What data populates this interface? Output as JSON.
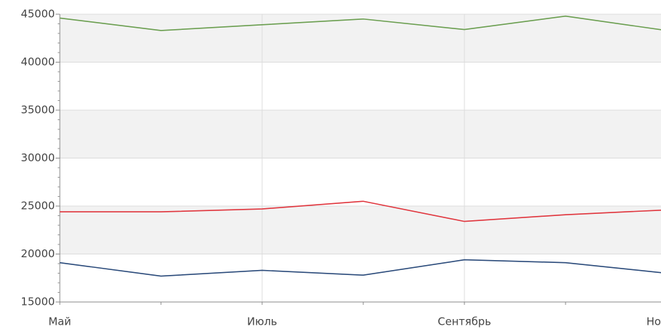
{
  "chart_data": {
    "type": "line",
    "categories": [
      "Май",
      null,
      "Июль",
      null,
      "Сентябрь",
      null,
      "Ноябрь"
    ],
    "series": [
      {
        "color": "#6a9e4f",
        "values": [
          44600,
          43300,
          43900,
          44500,
          43400,
          44800,
          43300
        ]
      },
      {
        "color": "#e0343c",
        "values": [
          24400,
          24400,
          24700,
          25500,
          23400,
          24100,
          24600
        ]
      },
      {
        "color": "#2a4a7a",
        "values": [
          19100,
          17700,
          18300,
          17800,
          19400,
          19100,
          18000
        ]
      }
    ],
    "ylim": [
      15000,
      45000
    ],
    "yticks": [
      15000,
      20000,
      25000,
      30000,
      35000,
      40000,
      45000
    ],
    "grid": true
  }
}
